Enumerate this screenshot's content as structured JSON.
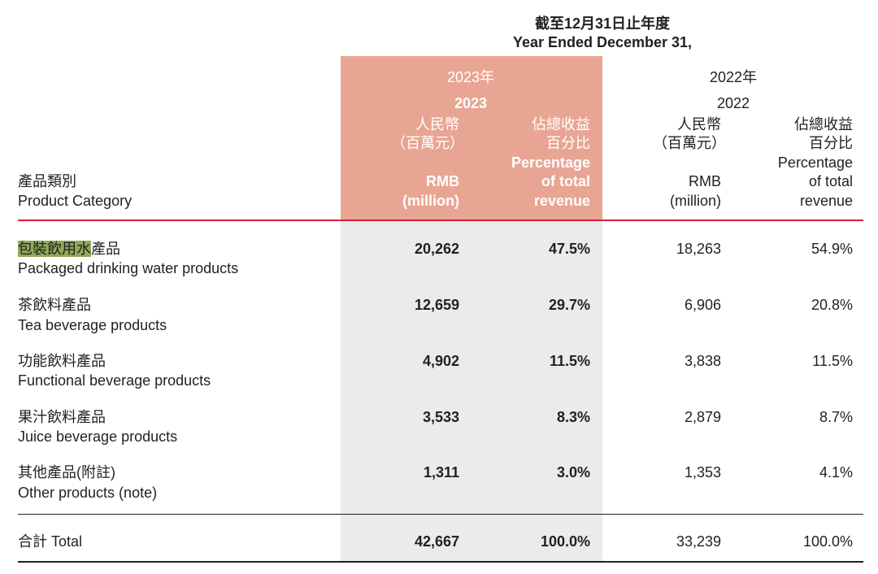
{
  "period": {
    "zh": "截至12月31日止年度",
    "en": "Year Ended December 31,"
  },
  "year_2023": {
    "zh": "2023年",
    "en": "2023",
    "amount_zh1": "人民幣",
    "amount_zh2": "（百萬元）",
    "amount_en1": "RMB",
    "amount_en2": "(million)",
    "pct_zh1": "佔總收益",
    "pct_zh2": "百分比",
    "pct_en1": "Percentage",
    "pct_en2": "of total",
    "pct_en3": "revenue"
  },
  "year_2022": {
    "zh": "2022年",
    "en": "2022",
    "amount_zh1": "人民幣",
    "amount_zh2": "（百萬元）",
    "amount_en1": "RMB",
    "amount_en2": "(million)",
    "pct_zh1": "佔總收益",
    "pct_zh2": "百分比",
    "pct_en1": "Percentage",
    "pct_en2": "of total",
    "pct_en3": "revenue"
  },
  "category_header": {
    "zh": "產品類別",
    "en": "Product Category"
  },
  "rows": [
    {
      "zh_highlight": "包裝飲用水",
      "zh": "產品",
      "en": "Packaged drinking water products",
      "rmb_2023": "20,262",
      "pct_2023": "47.5%",
      "rmb_2022": "18,263",
      "pct_2022": "54.9%"
    },
    {
      "zh_highlight": "",
      "zh": "茶飲料產品",
      "en": "Tea beverage products",
      "rmb_2023": "12,659",
      "pct_2023": "29.7%",
      "rmb_2022": "6,906",
      "pct_2022": "20.8%"
    },
    {
      "zh_highlight": "",
      "zh": "功能飲料產品",
      "en": "Functional beverage products",
      "rmb_2023": "4,902",
      "pct_2023": "11.5%",
      "rmb_2022": "3,838",
      "pct_2022": "11.5%"
    },
    {
      "zh_highlight": "",
      "zh": "果汁飲料產品",
      "en": "Juice beverage products",
      "rmb_2023": "3,533",
      "pct_2023": "8.3%",
      "rmb_2022": "2,879",
      "pct_2022": "8.7%"
    },
    {
      "zh_highlight": "",
      "zh": "其他產品(附註)",
      "en": "Other products (note)",
      "rmb_2023": "1,311",
      "pct_2023": "3.0%",
      "rmb_2022": "1,353",
      "pct_2022": "4.1%"
    }
  ],
  "total": {
    "label": "合計 Total",
    "rmb_2023": "42,667",
    "pct_2023": "100.0%",
    "rmb_2022": "33,239",
    "pct_2022": "100.0%"
  },
  "colors": {
    "highlight_column_header": "#e9a593",
    "highlight_column_body": "#ebebeb",
    "rule_red": "#d91f3c",
    "text_highlight": "#8fa95a"
  }
}
